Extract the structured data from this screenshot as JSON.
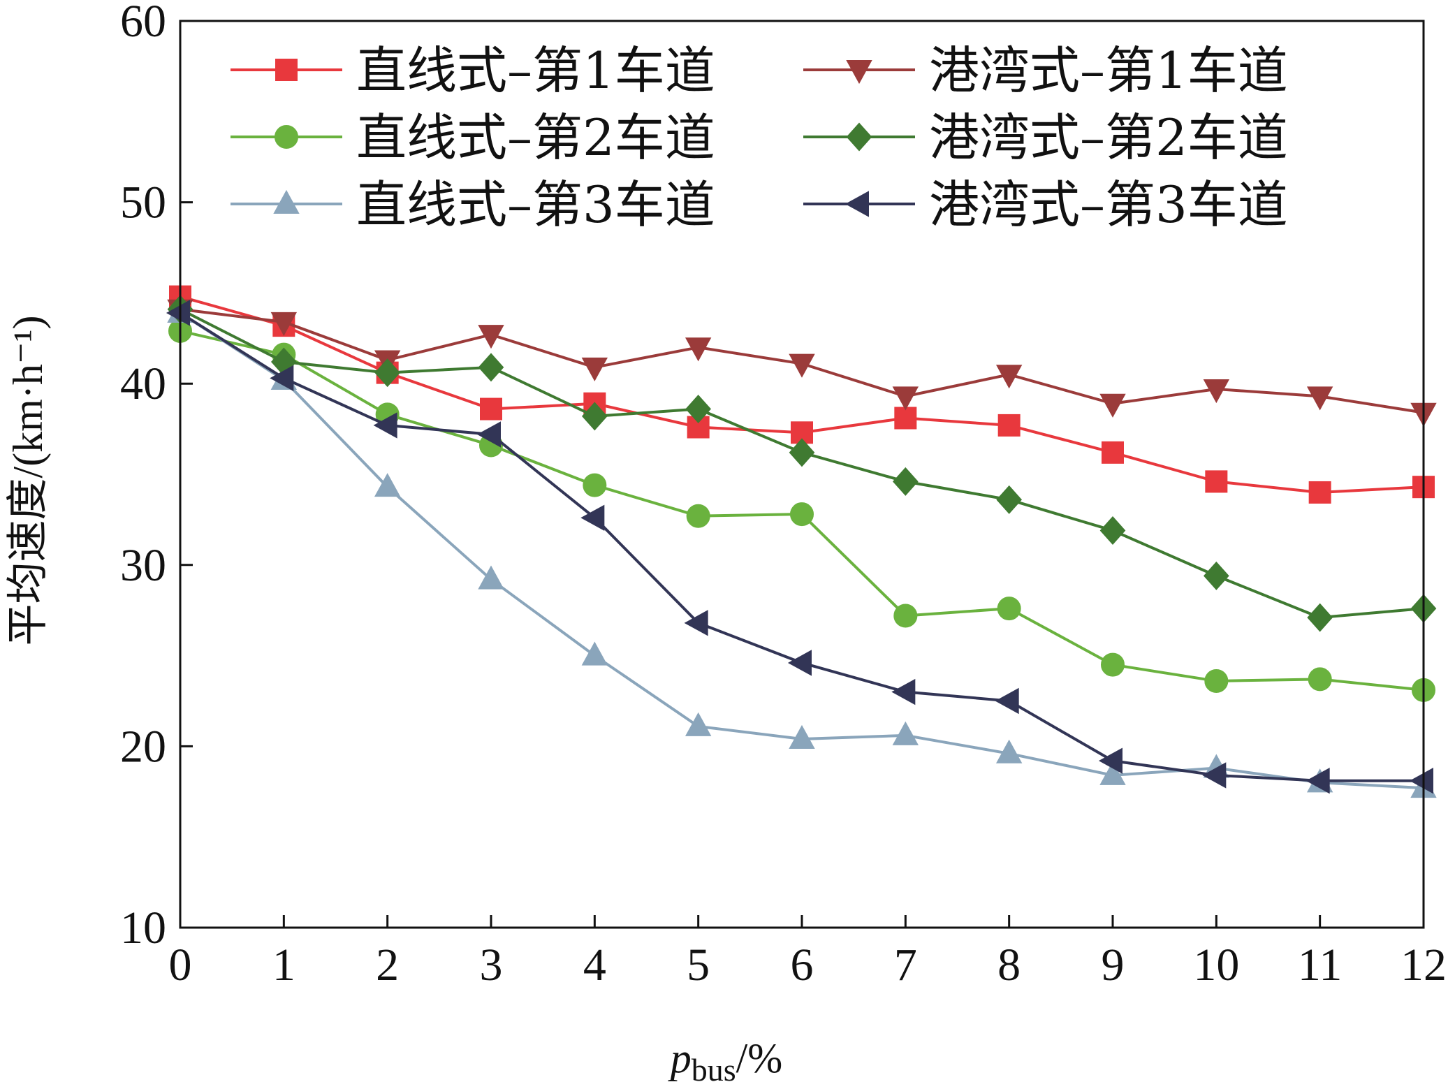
{
  "chart_data": {
    "type": "line",
    "xlabel_main": "p",
    "xlabel_sub": "bus",
    "xlabel_unit": "/%",
    "ylabel": "平均速度/(km·h⁻¹)",
    "xlim": [
      0,
      12
    ],
    "ylim": [
      10,
      60
    ],
    "xticks": [
      0,
      1,
      2,
      3,
      4,
      5,
      6,
      7,
      8,
      9,
      10,
      11,
      12
    ],
    "yticks": [
      10,
      20,
      30,
      40,
      50,
      60
    ],
    "grid": false,
    "legend_position": "top",
    "x": [
      0,
      1,
      2,
      3,
      4,
      5,
      6,
      7,
      8,
      9,
      10,
      11,
      12
    ],
    "series": [
      {
        "name": "直线式–第1车道",
        "color": "#e8383d",
        "marker": "square",
        "values": [
          44.8,
          43.2,
          40.6,
          38.6,
          38.9,
          37.6,
          37.3,
          38.1,
          37.7,
          36.2,
          34.6,
          34.0,
          34.3
        ]
      },
      {
        "name": "直线式–第2车道",
        "color": "#6ab23e",
        "marker": "circle",
        "values": [
          42.9,
          41.6,
          38.3,
          36.6,
          34.4,
          32.7,
          32.8,
          27.2,
          27.6,
          24.5,
          23.6,
          23.7,
          23.1
        ]
      },
      {
        "name": "直线式–第3车道",
        "color": "#8aa5bb",
        "marker": "triangle-up",
        "values": [
          43.9,
          40.2,
          34.3,
          29.2,
          25.0,
          21.1,
          20.4,
          20.6,
          19.6,
          18.4,
          18.8,
          18.0,
          17.7
        ]
      },
      {
        "name": "港湾式–第1车道",
        "color": "#9b3b3a",
        "marker": "triangle-down",
        "values": [
          44.1,
          43.4,
          41.3,
          42.7,
          40.9,
          42.0,
          41.1,
          39.3,
          40.5,
          38.9,
          39.7,
          39.3,
          38.4
        ]
      },
      {
        "name": "港湾式–第2车道",
        "color": "#3f7a31",
        "marker": "diamond",
        "values": [
          44.1,
          41.2,
          40.6,
          40.9,
          38.2,
          38.6,
          36.2,
          34.6,
          33.6,
          31.9,
          29.4,
          27.1,
          27.6
        ]
      },
      {
        "name": "港湾式–第3车道",
        "color": "#323556",
        "marker": "triangle-left",
        "values": [
          43.9,
          40.3,
          37.7,
          37.2,
          32.6,
          26.8,
          24.6,
          23.0,
          22.5,
          19.2,
          18.4,
          18.1,
          18.1
        ]
      }
    ]
  }
}
